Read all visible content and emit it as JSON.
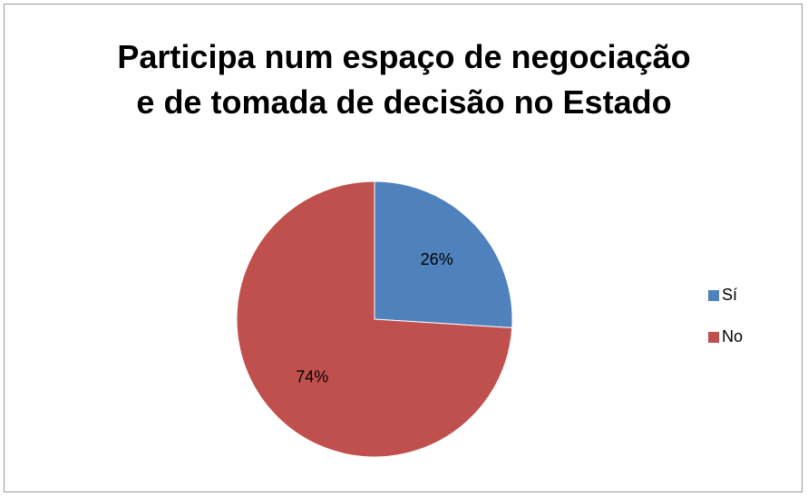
{
  "chart_data": {
    "type": "pie",
    "title": "Participa num espaço de negociação\ne de tomada de decisão no Estado",
    "categories": [
      "Sí",
      "No"
    ],
    "values": [
      26,
      74
    ],
    "value_labels": [
      "26%",
      "74%"
    ],
    "colors": [
      "#4f81bd",
      "#c0504d"
    ],
    "legend": "right"
  }
}
